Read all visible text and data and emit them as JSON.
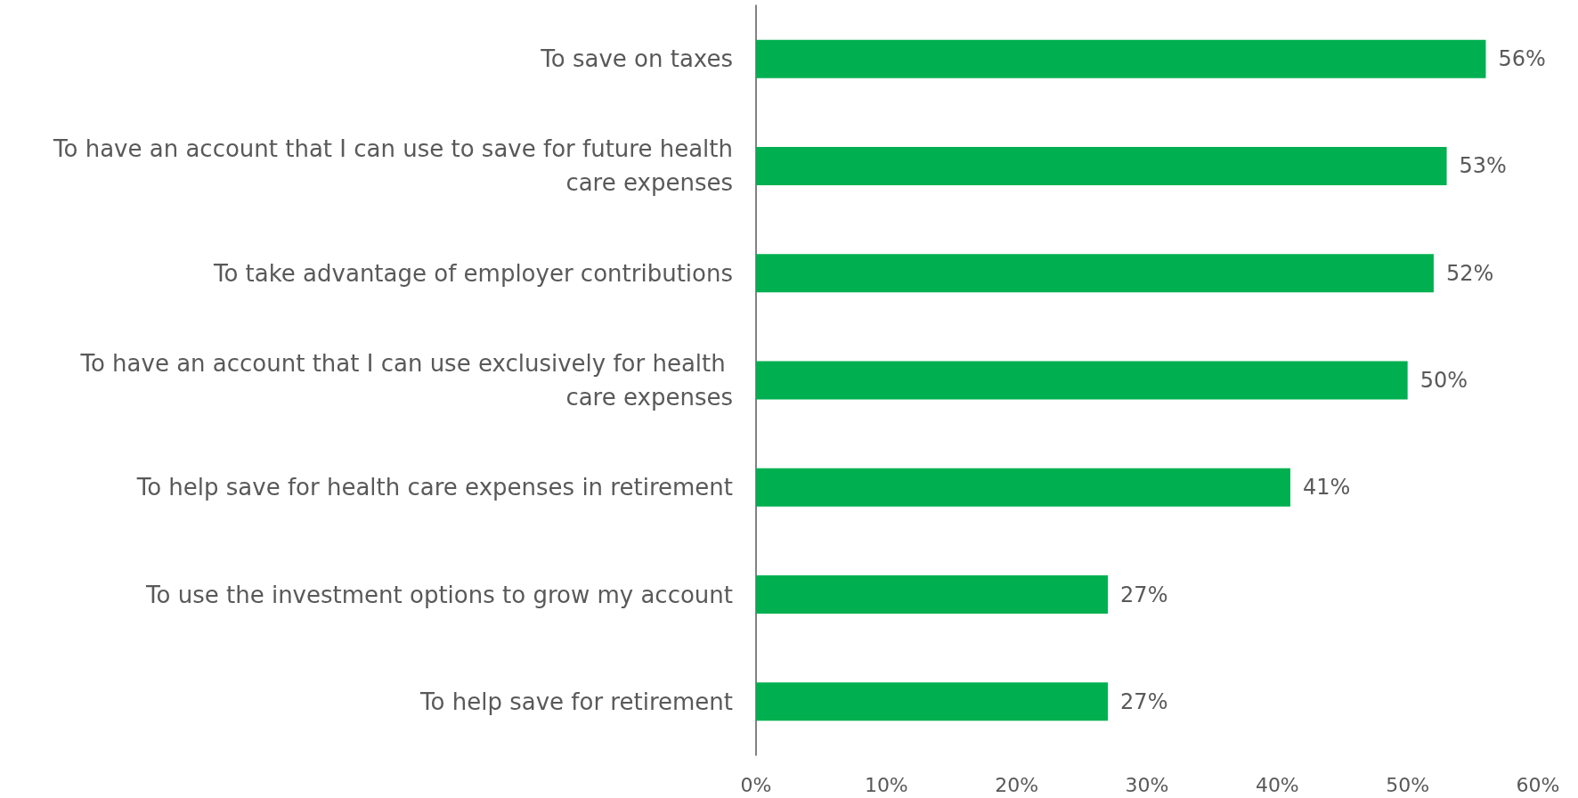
{
  "chart_data": {
    "type": "bar",
    "orientation": "horizontal",
    "categories": [
      "To save on taxes",
      "To have an account that I can use to save for future health care expenses",
      "To take advantage of employer contributions",
      "To have an account that I can use exclusively for health care expenses",
      "To help save for health care expenses in retirement",
      "To use the investment options to grow my account",
      "To help save for retirement"
    ],
    "values": [
      56,
      53,
      52,
      50,
      41,
      27,
      27
    ],
    "value_labels": [
      "56%",
      "53%",
      "52%",
      "50%",
      "41%",
      "27%",
      "27%"
    ],
    "color": "#00b050",
    "xlim": [
      0,
      60
    ],
    "xticks": [
      {
        "value": 0,
        "label": "0%"
      },
      {
        "value": 10,
        "label": "10%"
      },
      {
        "value": 20,
        "label": "20%"
      },
      {
        "value": 30,
        "label": "30%"
      },
      {
        "value": 40,
        "label": "40%"
      },
      {
        "value": 50,
        "label": "50%"
      },
      {
        "value": 60,
        "label": "60%"
      }
    ],
    "grid": false
  }
}
